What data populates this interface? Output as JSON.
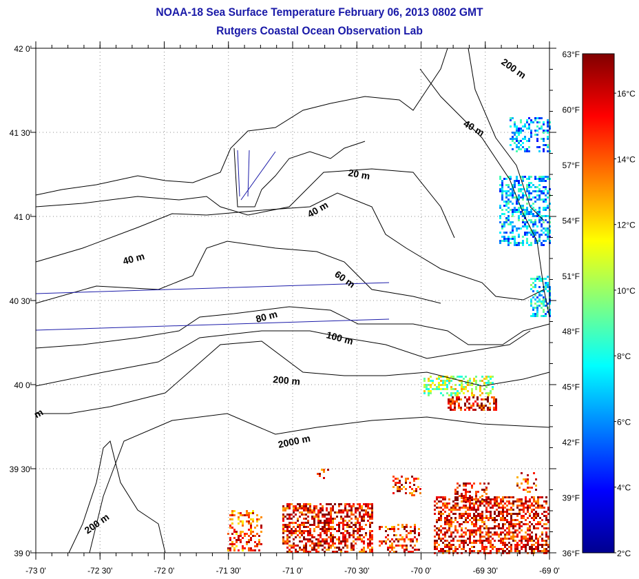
{
  "title": "NOAA-18 Sea Surface Temperature February 06, 2013 0802 GMT",
  "subtitle": "Rutgers Coastal Ocean Observation Lab",
  "map": {
    "lon_range": [
      -73,
      -69
    ],
    "lat_range": [
      39,
      42
    ],
    "lon_labels": [
      "-73 0'",
      "-72 30'",
      "-72 0'",
      "-71 30'",
      "-71 0'",
      "-70 30'",
      "-70 0'",
      "-69 30'",
      "-69 0'"
    ],
    "lat_labels": [
      "42 0'",
      "41 30'",
      "41 0'",
      "40 30'",
      "40 0'",
      "39 30'",
      "39 0'"
    ],
    "contour_labels": [
      "200 m",
      "40 m",
      "20 m",
      "40 m",
      "40 m",
      "60 m",
      "80 m",
      "100 m",
      "200 m",
      "2000 m",
      "200 m",
      "m"
    ]
  },
  "colorbar": {
    "fahrenheit_labels": [
      "63°F",
      "60°F",
      "57°F",
      "54°F",
      "51°F",
      "48°F",
      "45°F",
      "42°F",
      "39°F",
      "36°F"
    ],
    "celsius_labels": [
      "16°C",
      "14°C",
      "12°C",
      "10°C",
      "8°C",
      "6°C",
      "4°C",
      "2°C"
    ],
    "range_c": [
      2,
      17.2
    ],
    "colormap": [
      "#00008f",
      "#0000ff",
      "#0080ff",
      "#00ffff",
      "#80ff80",
      "#ffff00",
      "#ff8000",
      "#ff0000",
      "#800000"
    ]
  }
}
